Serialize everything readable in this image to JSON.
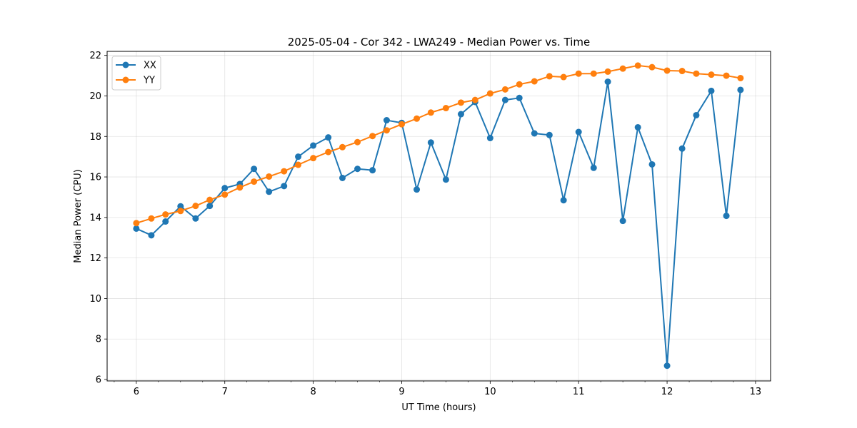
{
  "chart_data": {
    "type": "line",
    "title": "2025-05-04 - Cor 342 - LWA249 - Median Power vs. Time",
    "xlabel": "UT Time (hours)",
    "ylabel": "Median Power (CPU)",
    "xlim": [
      5.67,
      13.17
    ],
    "ylim": [
      5.93,
      22.2
    ],
    "xticks": [
      6,
      7,
      8,
      9,
      10,
      11,
      12,
      13
    ],
    "yticks": [
      6,
      8,
      10,
      12,
      14,
      16,
      18,
      20,
      22
    ],
    "grid": true,
    "legend_position": "top-left",
    "x": [
      6.0,
      6.17,
      6.33,
      6.5,
      6.67,
      6.83,
      7.0,
      7.17,
      7.33,
      7.5,
      7.67,
      7.83,
      8.0,
      8.17,
      8.33,
      8.5,
      8.67,
      8.83,
      9.0,
      9.17,
      9.33,
      9.5,
      9.67,
      9.83,
      10.0,
      10.17,
      10.33,
      10.5,
      10.67,
      10.83,
      11.0,
      11.17,
      11.33,
      11.5,
      11.67,
      11.83,
      12.0,
      12.17,
      12.33,
      12.5,
      12.67,
      12.83
    ],
    "series": [
      {
        "name": "XX",
        "color": "#1f77b4",
        "values": [
          13.45,
          13.12,
          13.8,
          14.55,
          13.95,
          14.57,
          15.45,
          15.65,
          16.4,
          15.27,
          15.55,
          17.0,
          17.55,
          17.95,
          15.95,
          16.4,
          16.33,
          18.8,
          18.67,
          15.38,
          17.7,
          15.87,
          19.1,
          19.7,
          17.92,
          19.8,
          19.9,
          18.15,
          18.07,
          14.85,
          18.22,
          16.45,
          20.7,
          13.83,
          18.45,
          16.62,
          6.68,
          17.4,
          19.05,
          20.25,
          14.08,
          20.3
        ]
      },
      {
        "name": "YY",
        "color": "#ff7f0e",
        "values": [
          13.72,
          13.95,
          14.15,
          14.32,
          14.57,
          14.87,
          15.13,
          15.48,
          15.77,
          16.02,
          16.28,
          16.6,
          16.93,
          17.23,
          17.47,
          17.72,
          18.02,
          18.3,
          18.6,
          18.88,
          19.18,
          19.4,
          19.67,
          19.8,
          20.12,
          20.32,
          20.57,
          20.72,
          20.97,
          20.93,
          21.1,
          21.1,
          21.2,
          21.35,
          21.5,
          21.42,
          21.25,
          21.23,
          21.1,
          21.05,
          21.0,
          20.88
        ]
      }
    ]
  }
}
